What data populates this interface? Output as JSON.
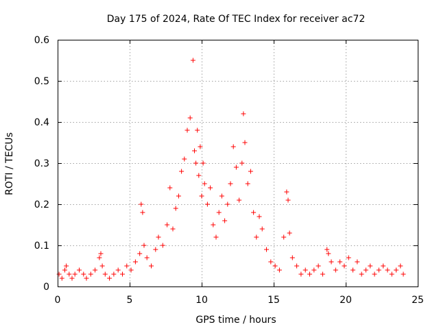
{
  "chart_data": {
    "type": "scatter",
    "title": "Day 175 of 2024, Rate Of TEC Index for receiver ac72",
    "xlabel": "GPS time / hours",
    "ylabel": "ROTI / TECUs",
    "xlim": [
      0,
      25
    ],
    "ylim": [
      0,
      0.6
    ],
    "xticks": [
      0,
      5,
      10,
      15,
      20,
      25
    ],
    "xtick_labels": [
      "0",
      "5",
      "10",
      "15",
      "20",
      "25"
    ],
    "yticks": [
      0,
      0.1,
      0.2,
      0.3,
      0.4,
      0.5,
      0.6
    ],
    "ytick_labels": [
      "0",
      "0.1",
      "0.2",
      "0.3",
      "0.4",
      "0.5",
      "0.6"
    ],
    "grid": true,
    "marker": "+",
    "color": "#ff0000",
    "series": [
      {
        "name": "ROTI",
        "x": [
          0.1,
          0.3,
          0.5,
          0.6,
          0.8,
          1.0,
          1.2,
          1.5,
          1.8,
          2.0,
          2.3,
          2.6,
          2.9,
          3.0,
          3.1,
          3.3,
          3.6,
          3.9,
          4.2,
          4.5,
          4.8,
          5.1,
          5.4,
          5.7,
          5.8,
          5.9,
          6.0,
          6.2,
          6.5,
          6.8,
          7.0,
          7.3,
          7.6,
          7.8,
          8.0,
          8.2,
          8.4,
          8.6,
          8.8,
          9.0,
          9.2,
          9.4,
          9.5,
          9.6,
          9.7,
          9.8,
          9.9,
          10.0,
          10.1,
          10.2,
          10.4,
          10.6,
          10.8,
          11.0,
          11.2,
          11.4,
          11.6,
          11.8,
          12.0,
          12.2,
          12.4,
          12.6,
          12.8,
          12.9,
          13.0,
          13.2,
          13.4,
          13.6,
          13.8,
          14.0,
          14.2,
          14.5,
          14.8,
          15.1,
          15.4,
          15.7,
          15.9,
          16.0,
          16.1,
          16.3,
          16.6,
          16.9,
          17.2,
          17.5,
          17.8,
          18.1,
          18.4,
          18.7,
          18.8,
          19.0,
          19.3,
          19.6,
          19.9,
          20.2,
          20.5,
          20.8,
          21.1,
          21.4,
          21.7,
          22.0,
          22.3,
          22.6,
          22.9,
          23.2,
          23.5,
          23.8,
          24.0
        ],
        "y": [
          0.03,
          0.02,
          0.04,
          0.05,
          0.03,
          0.02,
          0.03,
          0.04,
          0.03,
          0.02,
          0.03,
          0.04,
          0.07,
          0.08,
          0.05,
          0.03,
          0.02,
          0.03,
          0.04,
          0.03,
          0.05,
          0.04,
          0.06,
          0.08,
          0.2,
          0.18,
          0.1,
          0.07,
          0.05,
          0.09,
          0.12,
          0.1,
          0.15,
          0.24,
          0.14,
          0.19,
          0.22,
          0.28,
          0.31,
          0.38,
          0.41,
          0.55,
          0.33,
          0.3,
          0.38,
          0.27,
          0.34,
          0.22,
          0.3,
          0.25,
          0.2,
          0.24,
          0.15,
          0.12,
          0.18,
          0.22,
          0.16,
          0.2,
          0.25,
          0.34,
          0.29,
          0.21,
          0.3,
          0.42,
          0.35,
          0.25,
          0.28,
          0.18,
          0.12,
          0.17,
          0.14,
          0.09,
          0.06,
          0.05,
          0.04,
          0.12,
          0.23,
          0.21,
          0.13,
          0.07,
          0.05,
          0.03,
          0.04,
          0.03,
          0.04,
          0.05,
          0.03,
          0.09,
          0.08,
          0.06,
          0.04,
          0.06,
          0.05,
          0.07,
          0.04,
          0.06,
          0.03,
          0.04,
          0.05,
          0.03,
          0.04,
          0.05,
          0.04,
          0.03,
          0.04,
          0.05,
          0.03
        ]
      }
    ]
  }
}
